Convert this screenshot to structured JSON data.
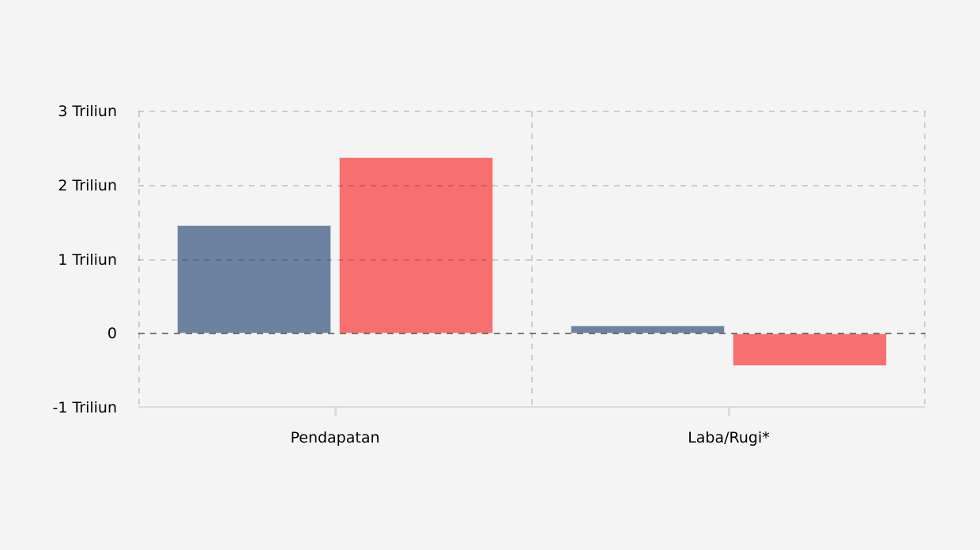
{
  "chart_data": {
    "type": "bar",
    "title": "",
    "categories": [
      "Pendapatan",
      "Laba/Rugi*"
    ],
    "series": [
      {
        "name": "series-blue",
        "color": "#6d82a0",
        "values": [
          1.46,
          0.11
        ]
      },
      {
        "name": "series-red",
        "color": "#f7706f",
        "values": [
          2.38,
          -0.43
        ]
      }
    ],
    "yticks": [
      {
        "value": 3,
        "label": "3 Triliun"
      },
      {
        "value": 2,
        "label": "2 Triliun"
      },
      {
        "value": 1,
        "label": "1 Triliun"
      },
      {
        "value": 0,
        "label": "0"
      },
      {
        "value": -1,
        "label": "-1 Triliun"
      }
    ],
    "ylim": [
      -1,
      3
    ],
    "xlabel": "",
    "ylabel": "",
    "legend": "none",
    "grid": "dashed",
    "colors": {
      "background": "#f4f4f4",
      "grid_line": "rgba(0,0,0,0.16)",
      "zero_line": "rgba(0,0,0,0.5)",
      "axis_line": "#dcdcdc",
      "label_text": "#000000"
    }
  }
}
